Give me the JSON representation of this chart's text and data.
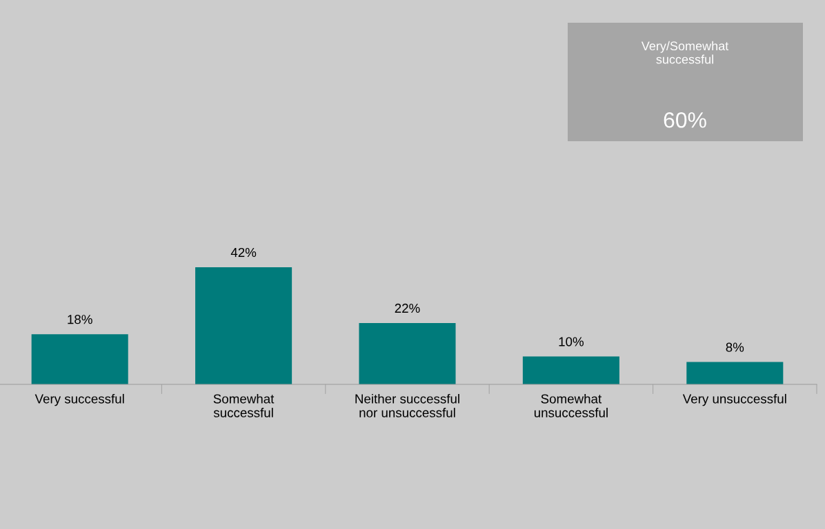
{
  "chart_data": {
    "type": "bar",
    "categories": [
      "Very successful",
      "Somewhat\nsuccessful",
      "Neither successful\nnor unsuccessful",
      "Somewhat\nunsuccessful",
      "Very unsuccessful"
    ],
    "values": [
      18,
      42,
      22,
      10,
      8
    ],
    "value_labels": [
      "18%",
      "42%",
      "22%",
      "10%",
      "8%"
    ],
    "color": "#007b7b",
    "grid": false,
    "legend": false,
    "annotations": [
      "Very/Somewhat\nsuccessful",
      "60%"
    ]
  }
}
